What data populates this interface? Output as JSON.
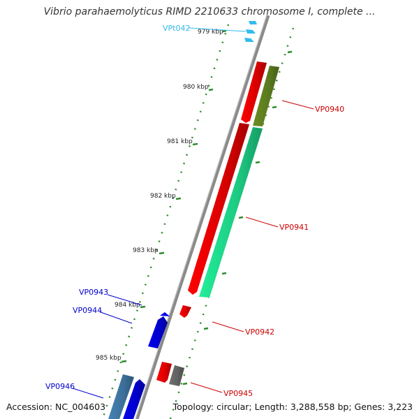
{
  "title": "Vibrio parahaemolyticus RIMD 2210633 chromosome I, complete ...",
  "footer": {
    "accession": "Accession: NC_004603",
    "topology": "Topology: circular; Length: 3,288,558 bp; Genes: 3,223"
  },
  "colors": {
    "forward_red": "#ff0000",
    "reverse_blue": "#0000ee",
    "trna_cyan": "#33bbee",
    "olive": "#6b8e23",
    "aqua": "#22ee99",
    "gray": "#707070",
    "steel": "#4682b4",
    "tick_green": "#2e8b2e",
    "backbone": "#8a8a8a",
    "label_red": "#cc0000",
    "label_blue": "#0000cc",
    "label_cyan": "#33bbee"
  },
  "ticks": [
    {
      "label": "979 kbp"
    },
    {
      "label": "980 kbp"
    },
    {
      "label": "981 kbp"
    },
    {
      "label": "982 kbp"
    },
    {
      "label": "983 kbp"
    },
    {
      "label": "984 kbp"
    },
    {
      "label": "985 kbp"
    }
  ],
  "genes": [
    {
      "label": "VPt042",
      "color_key": "label_cyan"
    },
    {
      "label": "VP0940",
      "color_key": "label_red"
    },
    {
      "label": "VP0941",
      "color_key": "label_red"
    },
    {
      "label": "VP0942",
      "color_key": "label_red"
    },
    {
      "label": "VP0943",
      "color_key": "label_blue"
    },
    {
      "label": "VP0944",
      "color_key": "label_blue"
    },
    {
      "label": "VP0945",
      "color_key": "label_red"
    },
    {
      "label": "VP0946",
      "color_key": "label_blue"
    }
  ]
}
